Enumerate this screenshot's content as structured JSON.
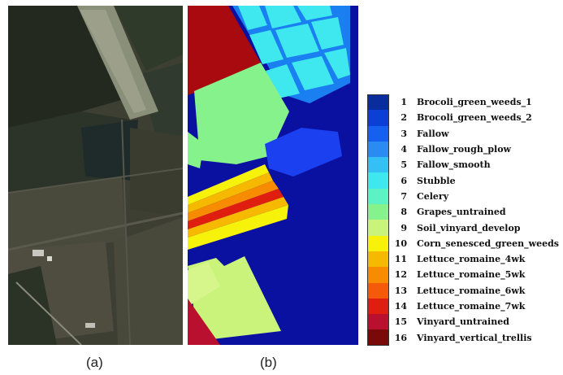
{
  "captions": {
    "a": "(a)",
    "b": "(b)"
  },
  "legend": [
    {
      "num": "1",
      "label": "Brocoli_green_weeds_1",
      "color": "#0a2d9e"
    },
    {
      "num": "2",
      "label": "Brocoli_green_weeds_2",
      "color": "#0b3fd6"
    },
    {
      "num": "3",
      "label": "Fallow",
      "color": "#1560f0"
    },
    {
      "num": "4",
      "label": "Fallow_rough_plow",
      "color": "#2a8cf2"
    },
    {
      "num": "5",
      "label": "Fallow_smooth",
      "color": "#35c0f5"
    },
    {
      "num": "6",
      "label": "Stubble",
      "color": "#3ee8ee"
    },
    {
      "num": "7",
      "label": "Celery",
      "color": "#5cf2c4"
    },
    {
      "num": "8",
      "label": "Grapes_untrained",
      "color": "#86f28c"
    },
    {
      "num": "9",
      "label": "Soil_vinyard_develop",
      "color": "#c9f37a"
    },
    {
      "num": "10",
      "label": "Corn_senesced_green_weeds",
      "color": "#f7f20a"
    },
    {
      "num": "11",
      "label": "Lettuce_romaine_4wk",
      "color": "#f7b800"
    },
    {
      "num": "12",
      "label": "Lettuce_romaine_5wk",
      "color": "#f78c00"
    },
    {
      "num": "13",
      "label": "Lettuce_romaine_6wk",
      "color": "#f45a0a"
    },
    {
      "num": "14",
      "label": "Lettuce_romaine_7wk",
      "color": "#e01e10"
    },
    {
      "num": "15",
      "label": "Vinyard_untrained",
      "color": "#b8102e"
    },
    {
      "num": "16",
      "label": "Vinyard_vertical_trellis",
      "color": "#7a0a0a"
    }
  ]
}
